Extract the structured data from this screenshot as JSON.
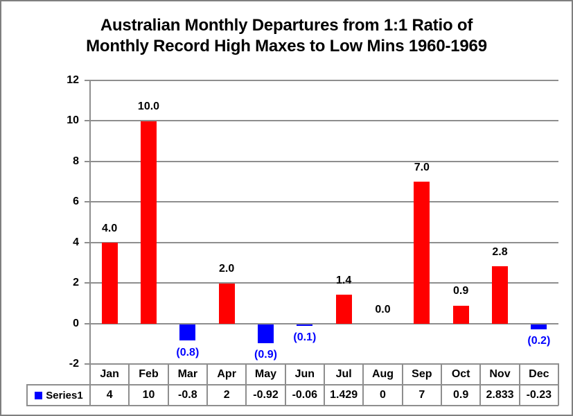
{
  "window": {
    "background": "#FFFFFF",
    "border_color": "#7F7F7F"
  },
  "chart_data": {
    "type": "bar",
    "title": "Australian Monthly Departures from 1:1 Ratio of Monthly Record High Maxes to Low Mins 1960-1969",
    "title_lines": [
      "Australian Monthly Departures from 1:1 Ratio of",
      "Monthly Record High Maxes to Low Mins 1960-1969"
    ],
    "categories": [
      "Jan",
      "Feb",
      "Mar",
      "Apr",
      "May",
      "Jun",
      "Jul",
      "Aug",
      "Sep",
      "Oct",
      "Nov",
      "Dec"
    ],
    "series": [
      {
        "name": "Series1",
        "values": [
          4,
          10,
          -0.8,
          2,
          -0.92,
          -0.06,
          1.429,
          0,
          7,
          0.9,
          2.833,
          -0.23
        ]
      }
    ],
    "bar_labels": [
      "4.0",
      "10.0",
      "(0.8)",
      "2.0",
      "(0.9)",
      "(0.1)",
      "1.4",
      "0.0",
      "7.0",
      "0.9",
      "2.8",
      "(0.2)"
    ],
    "data_table": {
      "legend_label": "Series1",
      "legend_marker_color": "#0000FF",
      "cell_values": [
        "4",
        "10",
        "-0.8",
        "2",
        "-0.92",
        "-0.06",
        "1.429",
        "0",
        "7",
        "0.9",
        "2.833",
        "-0.23"
      ]
    },
    "y_axis": {
      "min": -2,
      "max": 12,
      "tick_step": 2,
      "tick_labels": [
        "12",
        "10",
        "8",
        "6",
        "4",
        "2",
        "0",
        "-2"
      ]
    },
    "grid": true,
    "legend_position": "data-table-left",
    "colors": {
      "positive_bar": "#FF0000",
      "negative_bar": "#0000FF",
      "positive_label": "#000000",
      "negative_label": "#0000FF",
      "gridline": "#8E8E8E",
      "title_text": "#000000"
    }
  }
}
